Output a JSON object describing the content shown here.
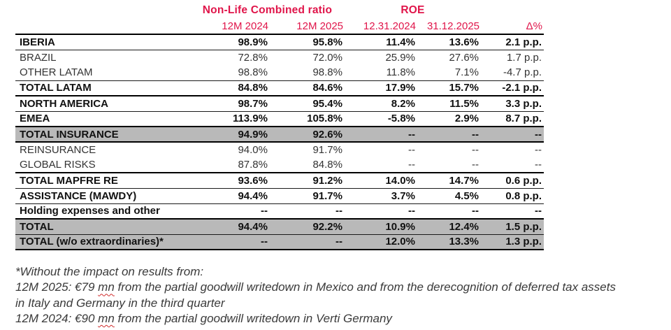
{
  "header": {
    "group1": "Non-Life Combined ratio",
    "group2": "ROE",
    "cols": [
      "12M 2024",
      "12M 2025",
      "12.31.2024",
      "31.12.2025",
      "Δ%"
    ]
  },
  "table": {
    "rows": [
      {
        "label": "IBERIA",
        "values": [
          "98.9%",
          "95.8%",
          "11.4%",
          "13.6%",
          "2.1 p.p."
        ]
      },
      {
        "label": "BRAZIL",
        "values": [
          "72.8%",
          "72.0%",
          "25.9%",
          "27.6%",
          "1.7 p.p."
        ]
      },
      {
        "label": "OTHER LATAM",
        "values": [
          "98.8%",
          "98.8%",
          "11.8%",
          "7.1%",
          "-4.7 p.p."
        ]
      },
      {
        "label": "TOTAL LATAM",
        "values": [
          "84.8%",
          "84.6%",
          "17.9%",
          "15.7%",
          "-2.1 p.p."
        ]
      },
      {
        "label": "NORTH AMERICA",
        "values": [
          "98.7%",
          "95.4%",
          "8.2%",
          "11.5%",
          "3.3 p.p."
        ]
      },
      {
        "label": "EMEA",
        "values": [
          "113.9%",
          "105.8%",
          "-5.8%",
          "2.9%",
          "8.7 p.p."
        ]
      },
      {
        "label": "TOTAL INSURANCE",
        "values": [
          "94.9%",
          "92.6%",
          "--",
          "--",
          "--"
        ]
      },
      {
        "label": "REINSURANCE",
        "values": [
          "94.0%",
          "91.7%",
          "--",
          "--",
          "--"
        ]
      },
      {
        "label": "GLOBAL RISKS",
        "values": [
          "87.8%",
          "84.8%",
          "--",
          "--",
          "--"
        ]
      },
      {
        "label": "TOTAL MAPFRE RE",
        "values": [
          "93.6%",
          "91.2%",
          "14.0%",
          "14.7%",
          "0.6 p.p."
        ]
      },
      {
        "label": "ASSISTANCE (MAWDY)",
        "values": [
          "94.4%",
          "91.7%",
          "3.7%",
          "4.5%",
          "0.8 p.p."
        ]
      },
      {
        "label": "Holding expenses and other",
        "values": [
          "--",
          "--",
          "--",
          "--",
          "--"
        ]
      },
      {
        "label": "TOTAL",
        "values": [
          "94.4%",
          "92.2%",
          "10.9%",
          "12.4%",
          "1.5 p.p."
        ]
      },
      {
        "label": "TOTAL (w/o extraordinaries)*",
        "values": [
          "--",
          "--",
          "12.0%",
          "13.3%",
          "1.3 p.p."
        ]
      }
    ]
  },
  "footnote": {
    "line1": "*Without the impact on results from:",
    "line2_pre": "12M 2025: €79 ",
    "line2_mn": "mn",
    "line2_post": " from the partial goodwill writedown in Mexico and from the derecognition of deferred tax assets",
    "line3": "in Italy and Germany in the third quarter",
    "line4_pre": "12M 2024: €90 ",
    "line4_mn": "mn",
    "line4_post": " from the partial goodwill writedown in Verti Germany"
  },
  "colors": {
    "accent_pink": "#e0154a",
    "row_gray": "#b9b9b9"
  }
}
